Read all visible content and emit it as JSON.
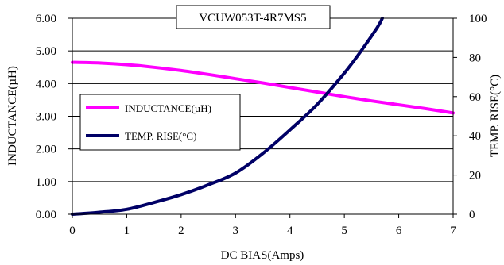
{
  "chart_data": {
    "type": "line",
    "title": "VCUW053T-4R7MS5",
    "xlabel": "DC BIAS(Amps)",
    "ylabel": "INDUCTANCE(µH)",
    "y2label": "TEMP. RISE(°C)",
    "xlim": [
      0,
      7
    ],
    "ylim": [
      0,
      6
    ],
    "y2lim": [
      0,
      100
    ],
    "x_ticks": [
      "0",
      "1",
      "2",
      "3",
      "4",
      "5",
      "6",
      "7"
    ],
    "y_ticks": [
      "0.00",
      "1.00",
      "2.00",
      "3.00",
      "4.00",
      "5.00",
      "6.00"
    ],
    "y2_ticks": [
      "0",
      "20",
      "40",
      "60",
      "80",
      "100"
    ],
    "grid": "horizontal",
    "legend_position": "left-middle",
    "series": [
      {
        "name": "INDUCTANCE(µH)",
        "axis": "left",
        "color": "#ff00ff",
        "x": [
          0,
          0.5,
          1,
          1.5,
          2,
          2.5,
          3,
          3.5,
          4,
          4.5,
          5,
          5.5,
          6,
          6.5,
          7
        ],
        "y": [
          4.65,
          4.63,
          4.58,
          4.5,
          4.4,
          4.28,
          4.15,
          4.02,
          3.88,
          3.74,
          3.6,
          3.47,
          3.35,
          3.23,
          3.1
        ]
      },
      {
        "name": "TEMP. RISE(°C)",
        "axis": "right",
        "color": "#000066",
        "x": [
          0,
          0.5,
          1,
          1.5,
          2,
          2.5,
          3,
          3.5,
          4,
          4.5,
          5,
          5.3,
          5.6,
          5.7
        ],
        "y": [
          0,
          1,
          2.5,
          6,
          10,
          15,
          21,
          31,
          43,
          56,
          72,
          83,
          95,
          100
        ]
      }
    ]
  }
}
